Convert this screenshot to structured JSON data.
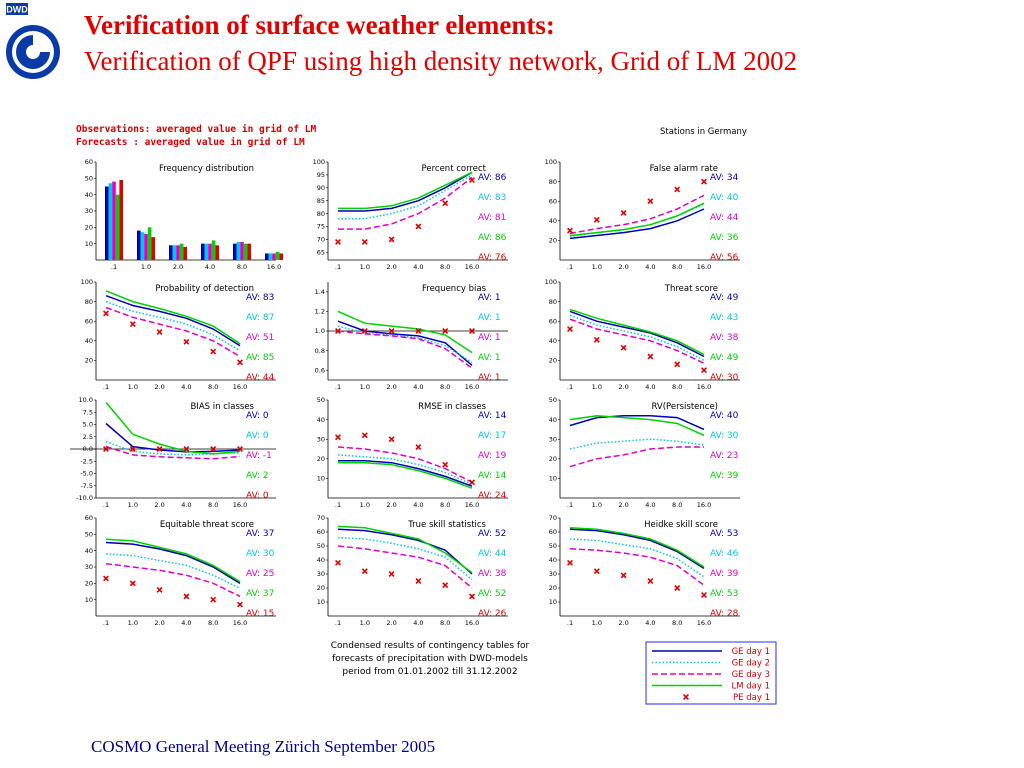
{
  "header": {
    "logo_text": "DWD",
    "title_line1": "Verification of surface weather elements:",
    "title_line2": "Verification of QPF using high density network, Grid of  LM 2002"
  },
  "figure": {
    "obs_line1": "Observations: averaged value in grid of LM",
    "obs_line2": "Forecasts    : averaged value in grid of LM",
    "stations_label": "Stations in Germany",
    "caption": [
      "Condensed results of contingency tables for",
      "forecasts of precipitation with DWD-models",
      "period from  01.01.2002  till  31.12.2002"
    ],
    "legend": [
      {
        "label": "GE day 1",
        "color": "#0000b4",
        "style": "solid"
      },
      {
        "label": "GE day 2",
        "color": "#00c8e6",
        "style": "dotted"
      },
      {
        "label": "GE day 3",
        "color": "#e000c8",
        "style": "dashed"
      },
      {
        "label": "LM day 1",
        "color": "#00d200",
        "style": "solid"
      },
      {
        "label": "PE day 1",
        "color": "#e00000",
        "style": "marker"
      }
    ]
  },
  "chart_data": [
    {
      "type": "bar",
      "title": "Frequency distribution",
      "categories": [
        ".1",
        "1.0",
        "2.0",
        "4.0",
        "8.0",
        "16.0"
      ],
      "yticks": [
        "10",
        "20",
        "30",
        "40",
        "50",
        "60"
      ],
      "ylim": [
        0,
        60
      ],
      "series": [
        {
          "name": "GE day 1",
          "values": [
            45,
            18,
            9,
            10,
            10,
            4
          ]
        },
        {
          "name": "GE day 2",
          "values": [
            47,
            17,
            9,
            10,
            11,
            4
          ]
        },
        {
          "name": "GE day 3",
          "values": [
            48,
            16,
            9,
            10,
            11,
            4
          ]
        },
        {
          "name": "LM day 1",
          "values": [
            40,
            20,
            10,
            12,
            10,
            5
          ]
        },
        {
          "name": "PE day 1",
          "values": [
            49,
            14,
            8,
            9,
            10,
            4
          ]
        }
      ]
    },
    {
      "type": "line",
      "title": "Percent correct",
      "x": [
        ".1",
        "1.0",
        "2.0",
        "4.0",
        "8.0",
        "16.0"
      ],
      "yticks": [
        "65",
        "70",
        "75",
        "80",
        "85",
        "90",
        "95",
        "100"
      ],
      "ylim": [
        62,
        100
      ],
      "series": [
        {
          "name": "GE day 1",
          "values": [
            81,
            81,
            82,
            85,
            90,
            96
          ]
        },
        {
          "name": "GE day 2",
          "values": [
            78,
            78,
            80,
            83,
            89,
            95
          ]
        },
        {
          "name": "GE day 3",
          "values": [
            74,
            74,
            76,
            80,
            86,
            94
          ]
        },
        {
          "name": "LM day 1",
          "values": [
            82,
            82,
            83,
            86,
            91,
            96
          ]
        },
        {
          "name": "PE day 1",
          "values": [
            69,
            69,
            70,
            75,
            84,
            93
          ]
        }
      ],
      "av": [
        "86",
        "83",
        "81",
        "86",
        "76"
      ]
    },
    {
      "type": "line",
      "title": "False alarm rate",
      "x": [
        ".1",
        "1.0",
        "2.0",
        "4.0",
        "8.0",
        "16.0"
      ],
      "yticks": [
        "20",
        "40",
        "60",
        "80",
        "100"
      ],
      "ylim": [
        0,
        100
      ],
      "series": [
        {
          "name": "GE day 1",
          "values": [
            22,
            25,
            28,
            32,
            40,
            52
          ]
        },
        {
          "name": "GE day 2",
          "values": [
            24,
            28,
            31,
            36,
            45,
            57
          ]
        },
        {
          "name": "GE day 3",
          "values": [
            27,
            32,
            36,
            42,
            52,
            66
          ]
        },
        {
          "name": "LM day 1",
          "values": [
            25,
            28,
            31,
            36,
            45,
            58
          ]
        },
        {
          "name": "PE day 1",
          "values": [
            30,
            41,
            48,
            60,
            72,
            80
          ]
        }
      ],
      "av": [
        "34",
        "40",
        "44",
        "36",
        "56"
      ]
    },
    {
      "type": "line",
      "title": "Probability of detection",
      "x": [
        ".1",
        "1.0",
        "2.0",
        "4.0",
        "8.0",
        "16.0"
      ],
      "yticks": [
        "20",
        "40",
        "60",
        "80",
        "100"
      ],
      "ylim": [
        0,
        100
      ],
      "series": [
        {
          "name": "GE day 1",
          "values": [
            86,
            76,
            70,
            63,
            52,
            35
          ]
        },
        {
          "name": "GE day 2",
          "values": [
            80,
            70,
            64,
            57,
            46,
            30
          ]
        },
        {
          "name": "GE day 3",
          "values": [
            74,
            64,
            57,
            50,
            40,
            24
          ]
        },
        {
          "name": "LM day 1",
          "values": [
            91,
            80,
            73,
            65,
            55,
            37
          ]
        },
        {
          "name": "PE day 1",
          "values": [
            68,
            57,
            49,
            39,
            29,
            18
          ]
        }
      ],
      "av": [
        "83",
        "87",
        "51",
        "85",
        "44"
      ]
    },
    {
      "type": "line",
      "title": "Frequency bias",
      "x": [
        ".1",
        "1.0",
        "2.0",
        "4.0",
        "8.0",
        "16.0"
      ],
      "yticks": [
        "0.6",
        "0.8",
        "1.0",
        "1.2",
        "1.4"
      ],
      "ylim": [
        0.5,
        1.5
      ],
      "series": [
        {
          "name": "GE day 1",
          "values": [
            1.1,
            1.0,
            0.97,
            0.95,
            0.88,
            0.65
          ]
        },
        {
          "name": "GE day 2",
          "values": [
            1.05,
            0.98,
            0.96,
            0.93,
            0.85,
            0.68
          ]
        },
        {
          "name": "GE day 3",
          "values": [
            1.0,
            0.97,
            0.95,
            0.92,
            0.82,
            0.62
          ]
        },
        {
          "name": "LM day 1",
          "values": [
            1.2,
            1.08,
            1.05,
            1.02,
            0.96,
            0.78
          ]
        },
        {
          "name": "PE day 1",
          "values": [
            1.0,
            1.0,
            1.0,
            1.0,
            1.0,
            1.0
          ]
        }
      ],
      "av": [
        "1",
        "1",
        "1",
        "1",
        "1"
      ]
    },
    {
      "type": "line",
      "title": "Threat score",
      "x": [
        ".1",
        "1.0",
        "2.0",
        "4.0",
        "8.0",
        "16.0"
      ],
      "yticks": [
        "20",
        "40",
        "60",
        "80",
        "100"
      ],
      "ylim": [
        0,
        100
      ],
      "series": [
        {
          "name": "GE day 1",
          "values": [
            70,
            60,
            54,
            48,
            38,
            24
          ]
        },
        {
          "name": "GE day 2",
          "values": [
            66,
            56,
            50,
            44,
            34,
            20
          ]
        },
        {
          "name": "GE day 3",
          "values": [
            62,
            52,
            46,
            40,
            30,
            17
          ]
        },
        {
          "name": "LM day 1",
          "values": [
            72,
            63,
            56,
            49,
            40,
            26
          ]
        },
        {
          "name": "PE day 1",
          "values": [
            52,
            41,
            33,
            24,
            16,
            10
          ]
        }
      ],
      "av": [
        "49",
        "43",
        "38",
        "49",
        "30"
      ]
    },
    {
      "type": "line",
      "title": "BIAS in classes",
      "x": [
        ".1",
        "1.0",
        "2.0",
        "4.0",
        "8.0",
        "16.0"
      ],
      "yticks": [
        "-10.0",
        "-7.5",
        "-5.0",
        "-2.5",
        "0.0",
        "2.5",
        "5.0",
        "7.5",
        "10.0"
      ],
      "ylim": [
        -10,
        10
      ],
      "series": [
        {
          "name": "GE day 1",
          "values": [
            5.2,
            0.5,
            -0.2,
            -0.6,
            -0.5,
            -0.2
          ]
        },
        {
          "name": "GE day 2",
          "values": [
            1.5,
            -0.5,
            -1.0,
            -1.2,
            -1.0,
            -0.8
          ]
        },
        {
          "name": "GE day 3",
          "values": [
            0.5,
            -1.2,
            -1.6,
            -1.8,
            -2.0,
            -1.5
          ]
        },
        {
          "name": "LM day 1",
          "values": [
            9.5,
            3.0,
            1.0,
            -0.5,
            -1.0,
            -0.5
          ]
        },
        {
          "name": "PE day 1",
          "values": [
            0,
            0,
            0,
            0,
            0,
            0
          ]
        }
      ],
      "av": [
        "0",
        "0",
        "-1",
        "2",
        "0"
      ]
    },
    {
      "type": "line",
      "title": "RMSE in classes",
      "x": [
        ".1",
        "1.0",
        "2.0",
        "4.0",
        "8.0",
        "16.0"
      ],
      "yticks": [
        "10",
        "20",
        "30",
        "40",
        "50"
      ],
      "ylim": [
        0,
        50
      ],
      "series": [
        {
          "name": "GE day 1",
          "values": [
            19,
            19,
            18,
            15,
            11,
            6
          ]
        },
        {
          "name": "GE day 2",
          "values": [
            22,
            21,
            20,
            17,
            13,
            7
          ]
        },
        {
          "name": "GE day 3",
          "values": [
            26,
            25,
            23,
            20,
            15,
            8
          ]
        },
        {
          "name": "LM day 1",
          "values": [
            18,
            18,
            17,
            14,
            10,
            5
          ]
        },
        {
          "name": "PE day 1",
          "values": [
            31,
            32,
            30,
            26,
            17,
            8
          ]
        }
      ],
      "av": [
        "14",
        "17",
        "19",
        "14",
        "24"
      ]
    },
    {
      "type": "line",
      "title": "RV(Persistence)",
      "x": [
        ".1",
        "1.0",
        "2.0",
        "4.0",
        "8.0",
        "16.0"
      ],
      "yticks": [
        "10",
        "20",
        "30",
        "40",
        "50"
      ],
      "ylim": [
        0,
        50
      ],
      "series": [
        {
          "name": "GE day 1",
          "values": [
            37,
            41,
            42,
            42,
            41,
            35
          ]
        },
        {
          "name": "GE day 2",
          "values": [
            25,
            28,
            29,
            30,
            29,
            27
          ]
        },
        {
          "name": "GE day 3",
          "values": [
            16,
            20,
            22,
            25,
            26,
            26
          ]
        },
        {
          "name": "LM day 1",
          "values": [
            40,
            42,
            41,
            40,
            38,
            32
          ]
        }
      ],
      "av": [
        "40",
        "30",
        "23",
        "39"
      ]
    },
    {
      "type": "line",
      "title": "Equitable threat score",
      "x": [
        ".1",
        "1.0",
        "2.0",
        "4.0",
        "8.0",
        "16.0"
      ],
      "yticks": [
        "10",
        "20",
        "30",
        "40",
        "50",
        "60"
      ],
      "ylim": [
        0,
        60
      ],
      "series": [
        {
          "name": "GE day 1",
          "values": [
            45,
            44,
            41,
            37,
            30,
            20
          ]
        },
        {
          "name": "GE day 2",
          "values": [
            38,
            37,
            34,
            31,
            25,
            17
          ]
        },
        {
          "name": "GE day 3",
          "values": [
            32,
            30,
            28,
            25,
            20,
            12
          ]
        },
        {
          "name": "LM day 1",
          "values": [
            47,
            46,
            42,
            38,
            31,
            21
          ]
        },
        {
          "name": "PE day 1",
          "values": [
            23,
            20,
            16,
            12,
            10,
            7
          ]
        }
      ],
      "av": [
        "37",
        "30",
        "25",
        "37",
        "15"
      ]
    },
    {
      "type": "line",
      "title": "True skill statistics",
      "x": [
        ".1",
        "1.0",
        "2.0",
        "4.0",
        "8.0",
        "16.0"
      ],
      "yticks": [
        "10",
        "20",
        "30",
        "40",
        "50",
        "60",
        "70"
      ],
      "ylim": [
        0,
        70
      ],
      "series": [
        {
          "name": "GE day 1",
          "values": [
            62,
            61,
            58,
            54,
            47,
            30
          ]
        },
        {
          "name": "GE day 2",
          "values": [
            56,
            55,
            52,
            48,
            42,
            26
          ]
        },
        {
          "name": "GE day 3",
          "values": [
            50,
            48,
            45,
            42,
            36,
            20
          ]
        },
        {
          "name": "LM day 1",
          "values": [
            64,
            63,
            59,
            55,
            45,
            31
          ]
        },
        {
          "name": "PE day 1",
          "values": [
            38,
            32,
            30,
            25,
            22,
            14
          ]
        }
      ],
      "av": [
        "52",
        "44",
        "38",
        "52",
        "26"
      ]
    },
    {
      "type": "line",
      "title": "Heidke skill score",
      "x": [
        ".1",
        "1.0",
        "2.0",
        "4.0",
        "8.0",
        "16.0"
      ],
      "yticks": [
        "10",
        "20",
        "30",
        "40",
        "50",
        "60",
        "70"
      ],
      "ylim": [
        0,
        70
      ],
      "series": [
        {
          "name": "GE day 1",
          "values": [
            62,
            61,
            58,
            54,
            46,
            34
          ]
        },
        {
          "name": "GE day 2",
          "values": [
            55,
            54,
            51,
            48,
            41,
            28
          ]
        },
        {
          "name": "GE day 3",
          "values": [
            48,
            47,
            45,
            42,
            36,
            22
          ]
        },
        {
          "name": "LM day 1",
          "values": [
            63,
            62,
            59,
            55,
            47,
            35
          ]
        },
        {
          "name": "PE day 1",
          "values": [
            38,
            32,
            29,
            25,
            20,
            15
          ]
        }
      ],
      "av": [
        "53",
        "46",
        "39",
        "53",
        "28"
      ]
    }
  ],
  "footer": {
    "text": "COSMO General Meeting  Zürich September 2005"
  }
}
